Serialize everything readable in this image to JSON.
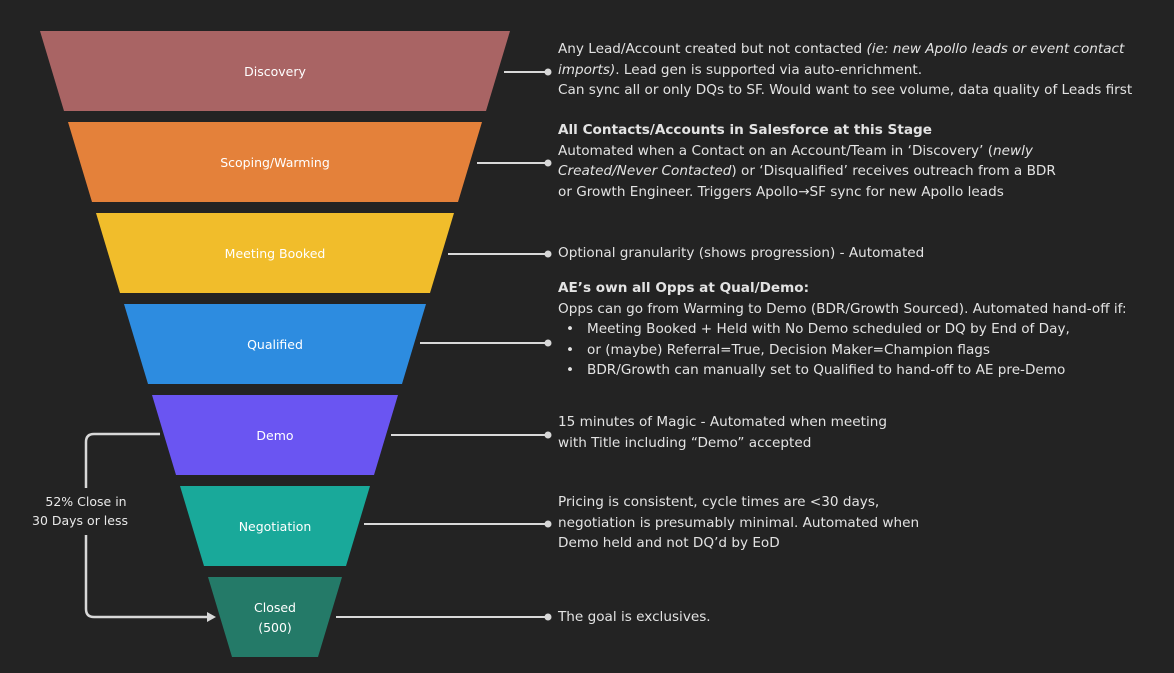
{
  "colors": {
    "background": "#232323",
    "connector": "#d8d8d8",
    "text": "#e3e3e3"
  },
  "stages": [
    {
      "id": "discovery",
      "label": "Discovery",
      "color": "#a96464"
    },
    {
      "id": "scoping",
      "label": "Scoping/Warming",
      "color": "#e4813a"
    },
    {
      "id": "meeting",
      "label": "Meeting Booked",
      "color": "#f1bd2b"
    },
    {
      "id": "qualified",
      "label": "Qualified",
      "color": "#2d8ce0"
    },
    {
      "id": "demo",
      "label": "Demo",
      "color": "#6a55f2"
    },
    {
      "id": "negotiation",
      "label": "Negotiation",
      "color": "#19a99a"
    },
    {
      "id": "closed",
      "label": "Closed",
      "label2": "(500)",
      "color": "#247a68"
    }
  ],
  "side_note": {
    "line1": "52% Close in",
    "line2": "30 Days or less"
  },
  "descriptions": {
    "discovery": {
      "l1_plain": "Any Lead/Account created but not contacted ",
      "l1_italic": "(ie: new Apollo leads or event contact",
      "l2_italic": "imports)",
      "l2_plain": ". Lead gen is supported via auto-enrichment.",
      "l3": "Can sync all or only DQs to SF. Would want to see volume, data quality of Leads first"
    },
    "scoping": {
      "heading": "All Contacts/Accounts in Salesforce at this Stage",
      "l1_plain": "Automated when a Contact on an Account/Team in ‘Discovery’ (",
      "l1_italic": "newly",
      "l2_italic": "Created/Never Contacted",
      "l2_plain": ") or ‘Disqualified’ receives outreach from a BDR",
      "l3": "or Growth Engineer. Triggers Apollo→SF sync for new Apollo leads"
    },
    "meeting": {
      "l1": "Optional granularity (shows progression) - Automated"
    },
    "qualified": {
      "heading": "AE’s own all Opps at Qual/Demo:",
      "l1": "Opps can go from Warming to Demo (BDR/Growth Sourced). Automated hand-off if:",
      "bullets": [
        "Meeting Booked + Held with No Demo scheduled or DQ by End of Day,",
        "or (maybe) Referral=True, Decision Maker=Champion flags",
        "BDR/Growth can manually set to Qualified to hand-off to AE pre-Demo"
      ]
    },
    "demo": {
      "l1": "15 minutes of Magic - Automated when meeting",
      "l2": "with Title including “Demo” accepted"
    },
    "negotiation": {
      "l1": "Pricing is consistent, cycle times are <30 days,",
      "l2": "negotiation is presumably minimal. Automated when",
      "l3": "Demo held and not DQ’d by EoD"
    },
    "closed": {
      "l1": "The goal is exclusives."
    }
  }
}
